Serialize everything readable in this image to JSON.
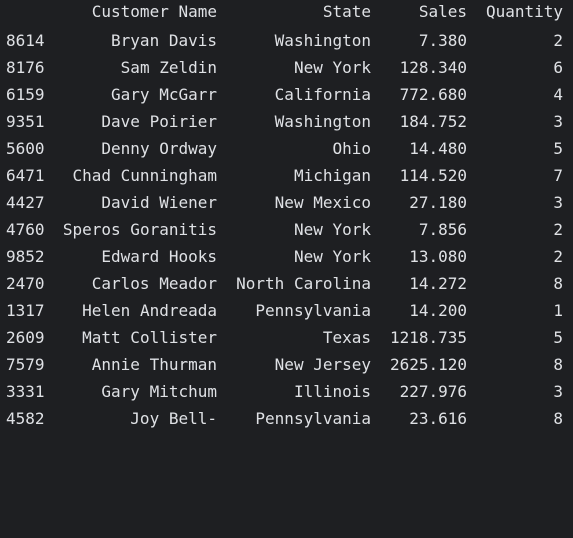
{
  "columns": {
    "name": "Customer Name",
    "state": "State",
    "sales": "Sales",
    "quantity": "Quantity"
  },
  "rows": [
    {
      "index": "8614",
      "name": "Bryan Davis",
      "state": "Washington",
      "sales": "7.380",
      "quantity": "2"
    },
    {
      "index": "8176",
      "name": "Sam Zeldin",
      "state": "New York",
      "sales": "128.340",
      "quantity": "6"
    },
    {
      "index": "6159",
      "name": "Gary McGarr",
      "state": "California",
      "sales": "772.680",
      "quantity": "4"
    },
    {
      "index": "9351",
      "name": "Dave Poirier",
      "state": "Washington",
      "sales": "184.752",
      "quantity": "3"
    },
    {
      "index": "5600",
      "name": "Denny Ordway",
      "state": "Ohio",
      "sales": "14.480",
      "quantity": "5"
    },
    {
      "index": "6471",
      "name": "Chad Cunningham",
      "state": "Michigan",
      "sales": "114.520",
      "quantity": "7"
    },
    {
      "index": "4427",
      "name": "David Wiener",
      "state": "New Mexico",
      "sales": "27.180",
      "quantity": "3"
    },
    {
      "index": "4760",
      "name": "Speros Goranitis",
      "state": "New York",
      "sales": "7.856",
      "quantity": "2"
    },
    {
      "index": "9852",
      "name": "Edward Hooks",
      "state": "New York",
      "sales": "13.080",
      "quantity": "2"
    },
    {
      "index": "2470",
      "name": "Carlos Meador",
      "state": "North Carolina",
      "sales": "14.272",
      "quantity": "8"
    },
    {
      "index": "1317",
      "name": "Helen Andreada",
      "state": "Pennsylvania",
      "sales": "14.200",
      "quantity": "1"
    },
    {
      "index": "2609",
      "name": "Matt Collister",
      "state": "Texas",
      "sales": "1218.735",
      "quantity": "5"
    },
    {
      "index": "7579",
      "name": "Annie Thurman",
      "state": "New Jersey",
      "sales": "2625.120",
      "quantity": "8"
    },
    {
      "index": "3331",
      "name": "Gary Mitchum",
      "state": "Illinois",
      "sales": "227.976",
      "quantity": "3"
    },
    {
      "index": "4582",
      "name": "Joy Bell-",
      "state": "Pennsylvania",
      "sales": "23.616",
      "quantity": "8"
    }
  ]
}
